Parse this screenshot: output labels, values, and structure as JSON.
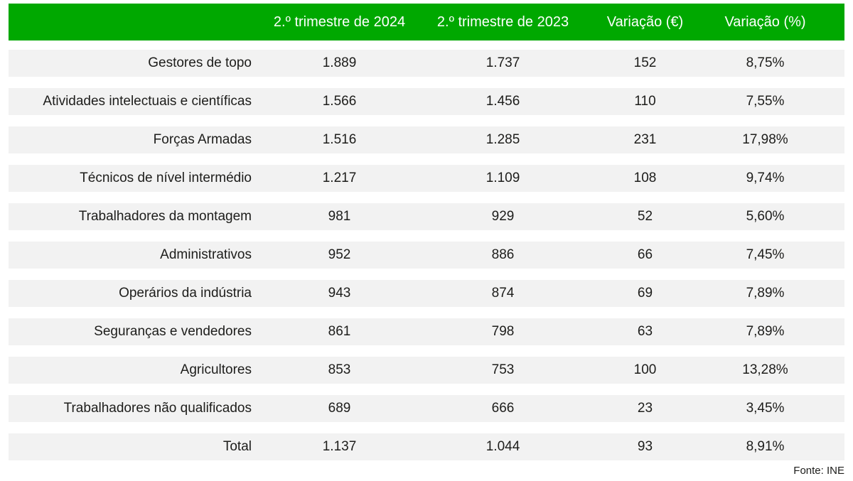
{
  "chart_data": {
    "type": "table",
    "title": "",
    "headers": [
      "",
      "2.º trimestre de 2024",
      "2.º trimestre de 2023",
      "Variação (€)",
      "Variação (%)"
    ],
    "rows": [
      [
        "Gestores de topo",
        "1.889",
        "1.737",
        "152",
        "8,75%"
      ],
      [
        "Atividades intelectuais e científicas",
        "1.566",
        "1.456",
        "110",
        "7,55%"
      ],
      [
        "Forças Armadas",
        "1.516",
        "1.285",
        "231",
        "17,98%"
      ],
      [
        "Técnicos de nível intermédio",
        "1.217",
        "1.109",
        "108",
        "9,74%"
      ],
      [
        "Trabalhadores da montagem",
        "981",
        "929",
        "52",
        "5,60%"
      ],
      [
        "Administrativos",
        "952",
        "886",
        "66",
        "7,45%"
      ],
      [
        "Operários da indústria",
        "943",
        "874",
        "69",
        "7,89%"
      ],
      [
        "Seguranças e vendedores",
        "861",
        "798",
        "63",
        "7,89%"
      ],
      [
        "Agricultores",
        "853",
        "753",
        "100",
        "13,28%"
      ],
      [
        "Trabalhadores não qualificados",
        "689",
        "666",
        "23",
        "3,45%"
      ],
      [
        "Total",
        "1.137",
        "1.044",
        "93",
        "8,91%"
      ]
    ],
    "source": "Fonte: INE"
  },
  "colors": {
    "header_bg": "#00A800",
    "header_text": "#FFFFFF",
    "row_bg": "#F2F2F2",
    "text": "#1D1D1B"
  }
}
